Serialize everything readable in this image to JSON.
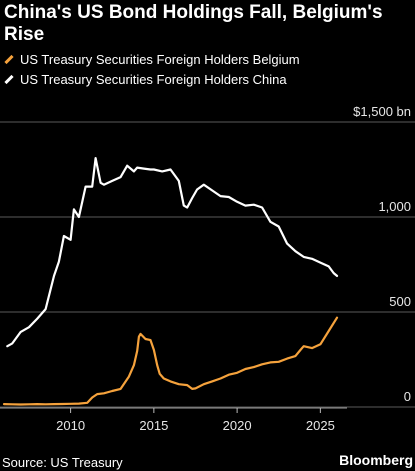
{
  "colors": {
    "background": "#000000",
    "belgium": "#f5a23c",
    "china": "#ffffff",
    "grid": "#5a5a5a"
  },
  "source": "Source: US Treasury",
  "brand": "Bloomberg",
  "chart_data": {
    "type": "line",
    "title": "China's US Bond Holdings Fall, Belgium's Rise",
    "xlabel": "",
    "ylabel": "",
    "unit": "bn",
    "xlim": [
      2006,
      2026.6
    ],
    "ylim": [
      0,
      1500
    ],
    "x_ticks": [
      2010,
      2015,
      2020,
      2025
    ],
    "y_ticks": [
      {
        "value": 0,
        "label": "0"
      },
      {
        "value": 500,
        "label": "500"
      },
      {
        "value": 1000,
        "label": "1,000"
      },
      {
        "value": 1500,
        "label": "$1,500 bn"
      }
    ],
    "grid": true,
    "legend_position": "top-left",
    "series": [
      {
        "name": "US Treasury Securities Foreign Holders Belgium",
        "color": "#f5a23c",
        "points": [
          [
            2006,
            15
          ],
          [
            2006.5,
            14
          ],
          [
            2007,
            13
          ],
          [
            2007.5,
            14
          ],
          [
            2008,
            15
          ],
          [
            2008.5,
            14
          ],
          [
            2009,
            15
          ],
          [
            2009.5,
            16
          ],
          [
            2010,
            17
          ],
          [
            2010.5,
            18
          ],
          [
            2011,
            22
          ],
          [
            2011.3,
            50
          ],
          [
            2011.6,
            68
          ],
          [
            2012,
            72
          ],
          [
            2012.5,
            84
          ],
          [
            2013,
            95
          ],
          [
            2013.5,
            160
          ],
          [
            2013.8,
            220
          ],
          [
            2014,
            295
          ],
          [
            2014.1,
            370
          ],
          [
            2014.2,
            385
          ],
          [
            2014.5,
            358
          ],
          [
            2014.8,
            352
          ],
          [
            2015,
            300
          ],
          [
            2015.2,
            220
          ],
          [
            2015.35,
            175
          ],
          [
            2015.6,
            150
          ],
          [
            2016,
            135
          ],
          [
            2016.5,
            120
          ],
          [
            2017,
            115
          ],
          [
            2017.3,
            95
          ],
          [
            2017.5,
            98
          ],
          [
            2018,
            120
          ],
          [
            2018.5,
            135
          ],
          [
            2019,
            150
          ],
          [
            2019.5,
            170
          ],
          [
            2020,
            180
          ],
          [
            2020.5,
            200
          ],
          [
            2021,
            210
          ],
          [
            2021.5,
            225
          ],
          [
            2022,
            235
          ],
          [
            2022.5,
            238
          ],
          [
            2023,
            255
          ],
          [
            2023.5,
            268
          ],
          [
            2023.8,
            300
          ],
          [
            2024,
            320
          ],
          [
            2024.5,
            310
          ],
          [
            2025,
            330
          ],
          [
            2025.5,
            400
          ],
          [
            2026,
            470
          ]
        ]
      },
      {
        "name": "US Treasury Securities Foreign Holders China",
        "color": "#ffffff",
        "points": [
          [
            2006.2,
            320
          ],
          [
            2006.5,
            335
          ],
          [
            2007,
            395
          ],
          [
            2007.5,
            420
          ],
          [
            2008,
            465
          ],
          [
            2008.5,
            515
          ],
          [
            2009,
            690
          ],
          [
            2009.3,
            765
          ],
          [
            2009.6,
            900
          ],
          [
            2010,
            880
          ],
          [
            2010.2,
            1040
          ],
          [
            2010.5,
            1000
          ],
          [
            2010.9,
            1160
          ],
          [
            2011.3,
            1160
          ],
          [
            2011.5,
            1310
          ],
          [
            2011.8,
            1180
          ],
          [
            2012,
            1170
          ],
          [
            2012.5,
            1190
          ],
          [
            2013,
            1210
          ],
          [
            2013.4,
            1270
          ],
          [
            2013.8,
            1240
          ],
          [
            2014,
            1260
          ],
          [
            2014.4,
            1255
          ],
          [
            2014.8,
            1250
          ],
          [
            2015,
            1250
          ],
          [
            2015.5,
            1240
          ],
          [
            2016,
            1250
          ],
          [
            2016.5,
            1190
          ],
          [
            2016.8,
            1060
          ],
          [
            2017,
            1050
          ],
          [
            2017.3,
            1100
          ],
          [
            2017.6,
            1145
          ],
          [
            2018,
            1170
          ],
          [
            2018.5,
            1140
          ],
          [
            2019,
            1110
          ],
          [
            2019.5,
            1105
          ],
          [
            2020,
            1080
          ],
          [
            2020.5,
            1060
          ],
          [
            2021,
            1065
          ],
          [
            2021.5,
            1050
          ],
          [
            2022,
            975
          ],
          [
            2022.5,
            950
          ],
          [
            2023,
            860
          ],
          [
            2023.5,
            820
          ],
          [
            2024,
            790
          ],
          [
            2024.5,
            780
          ],
          [
            2025,
            760
          ],
          [
            2025.5,
            740
          ],
          [
            2025.8,
            705
          ],
          [
            2026,
            690
          ]
        ]
      }
    ]
  }
}
